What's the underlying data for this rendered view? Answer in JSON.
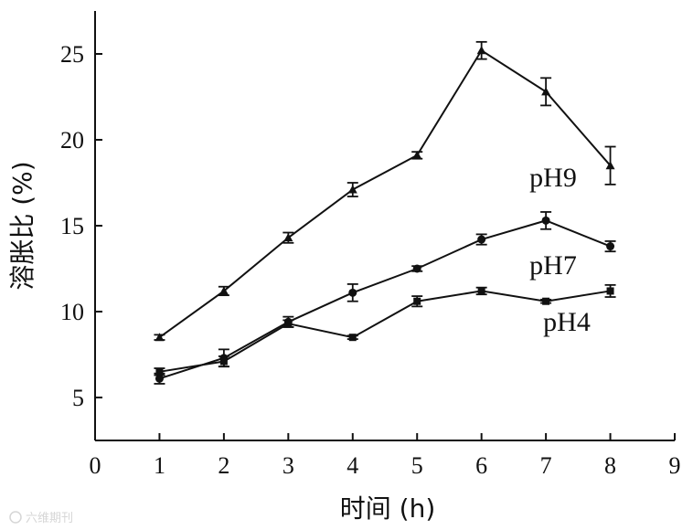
{
  "chart_data": {
    "type": "line",
    "xlabel": "时间 (h)",
    "ylabel": "溶胀比 (%)",
    "xlim": [
      0,
      9
    ],
    "ylim": [
      2.5,
      27.5
    ],
    "xticks": [
      "0",
      "1",
      "2",
      "3",
      "4",
      "5",
      "6",
      "7",
      "8",
      "9"
    ],
    "yticks": [
      "5",
      "10",
      "15",
      "20",
      "25"
    ],
    "x": [
      1,
      2,
      3,
      4,
      5,
      6,
      7,
      8
    ],
    "series": [
      {
        "name": "pH9",
        "marker": "triangle",
        "values": [
          8.5,
          11.2,
          14.3,
          17.1,
          19.1,
          25.2,
          22.8,
          18.5
        ],
        "errors": [
          0.15,
          0.25,
          0.3,
          0.4,
          0.2,
          0.5,
          0.8,
          1.1
        ]
      },
      {
        "name": "pH7",
        "marker": "circle",
        "values": [
          6.1,
          7.3,
          9.4,
          11.1,
          12.5,
          14.2,
          15.3,
          13.8
        ],
        "errors": [
          0.3,
          0.5,
          0.3,
          0.5,
          0.15,
          0.3,
          0.5,
          0.3
        ]
      },
      {
        "name": "pH4",
        "marker": "square",
        "values": [
          6.5,
          7.1,
          9.3,
          8.5,
          10.6,
          11.2,
          10.6,
          11.2
        ],
        "errors": [
          0.2,
          0.3,
          0.2,
          0.1,
          0.3,
          0.2,
          0.1,
          0.35
        ]
      }
    ],
    "grid": false,
    "legend": "inline labels near line ends"
  },
  "watermark": "六维期刊"
}
